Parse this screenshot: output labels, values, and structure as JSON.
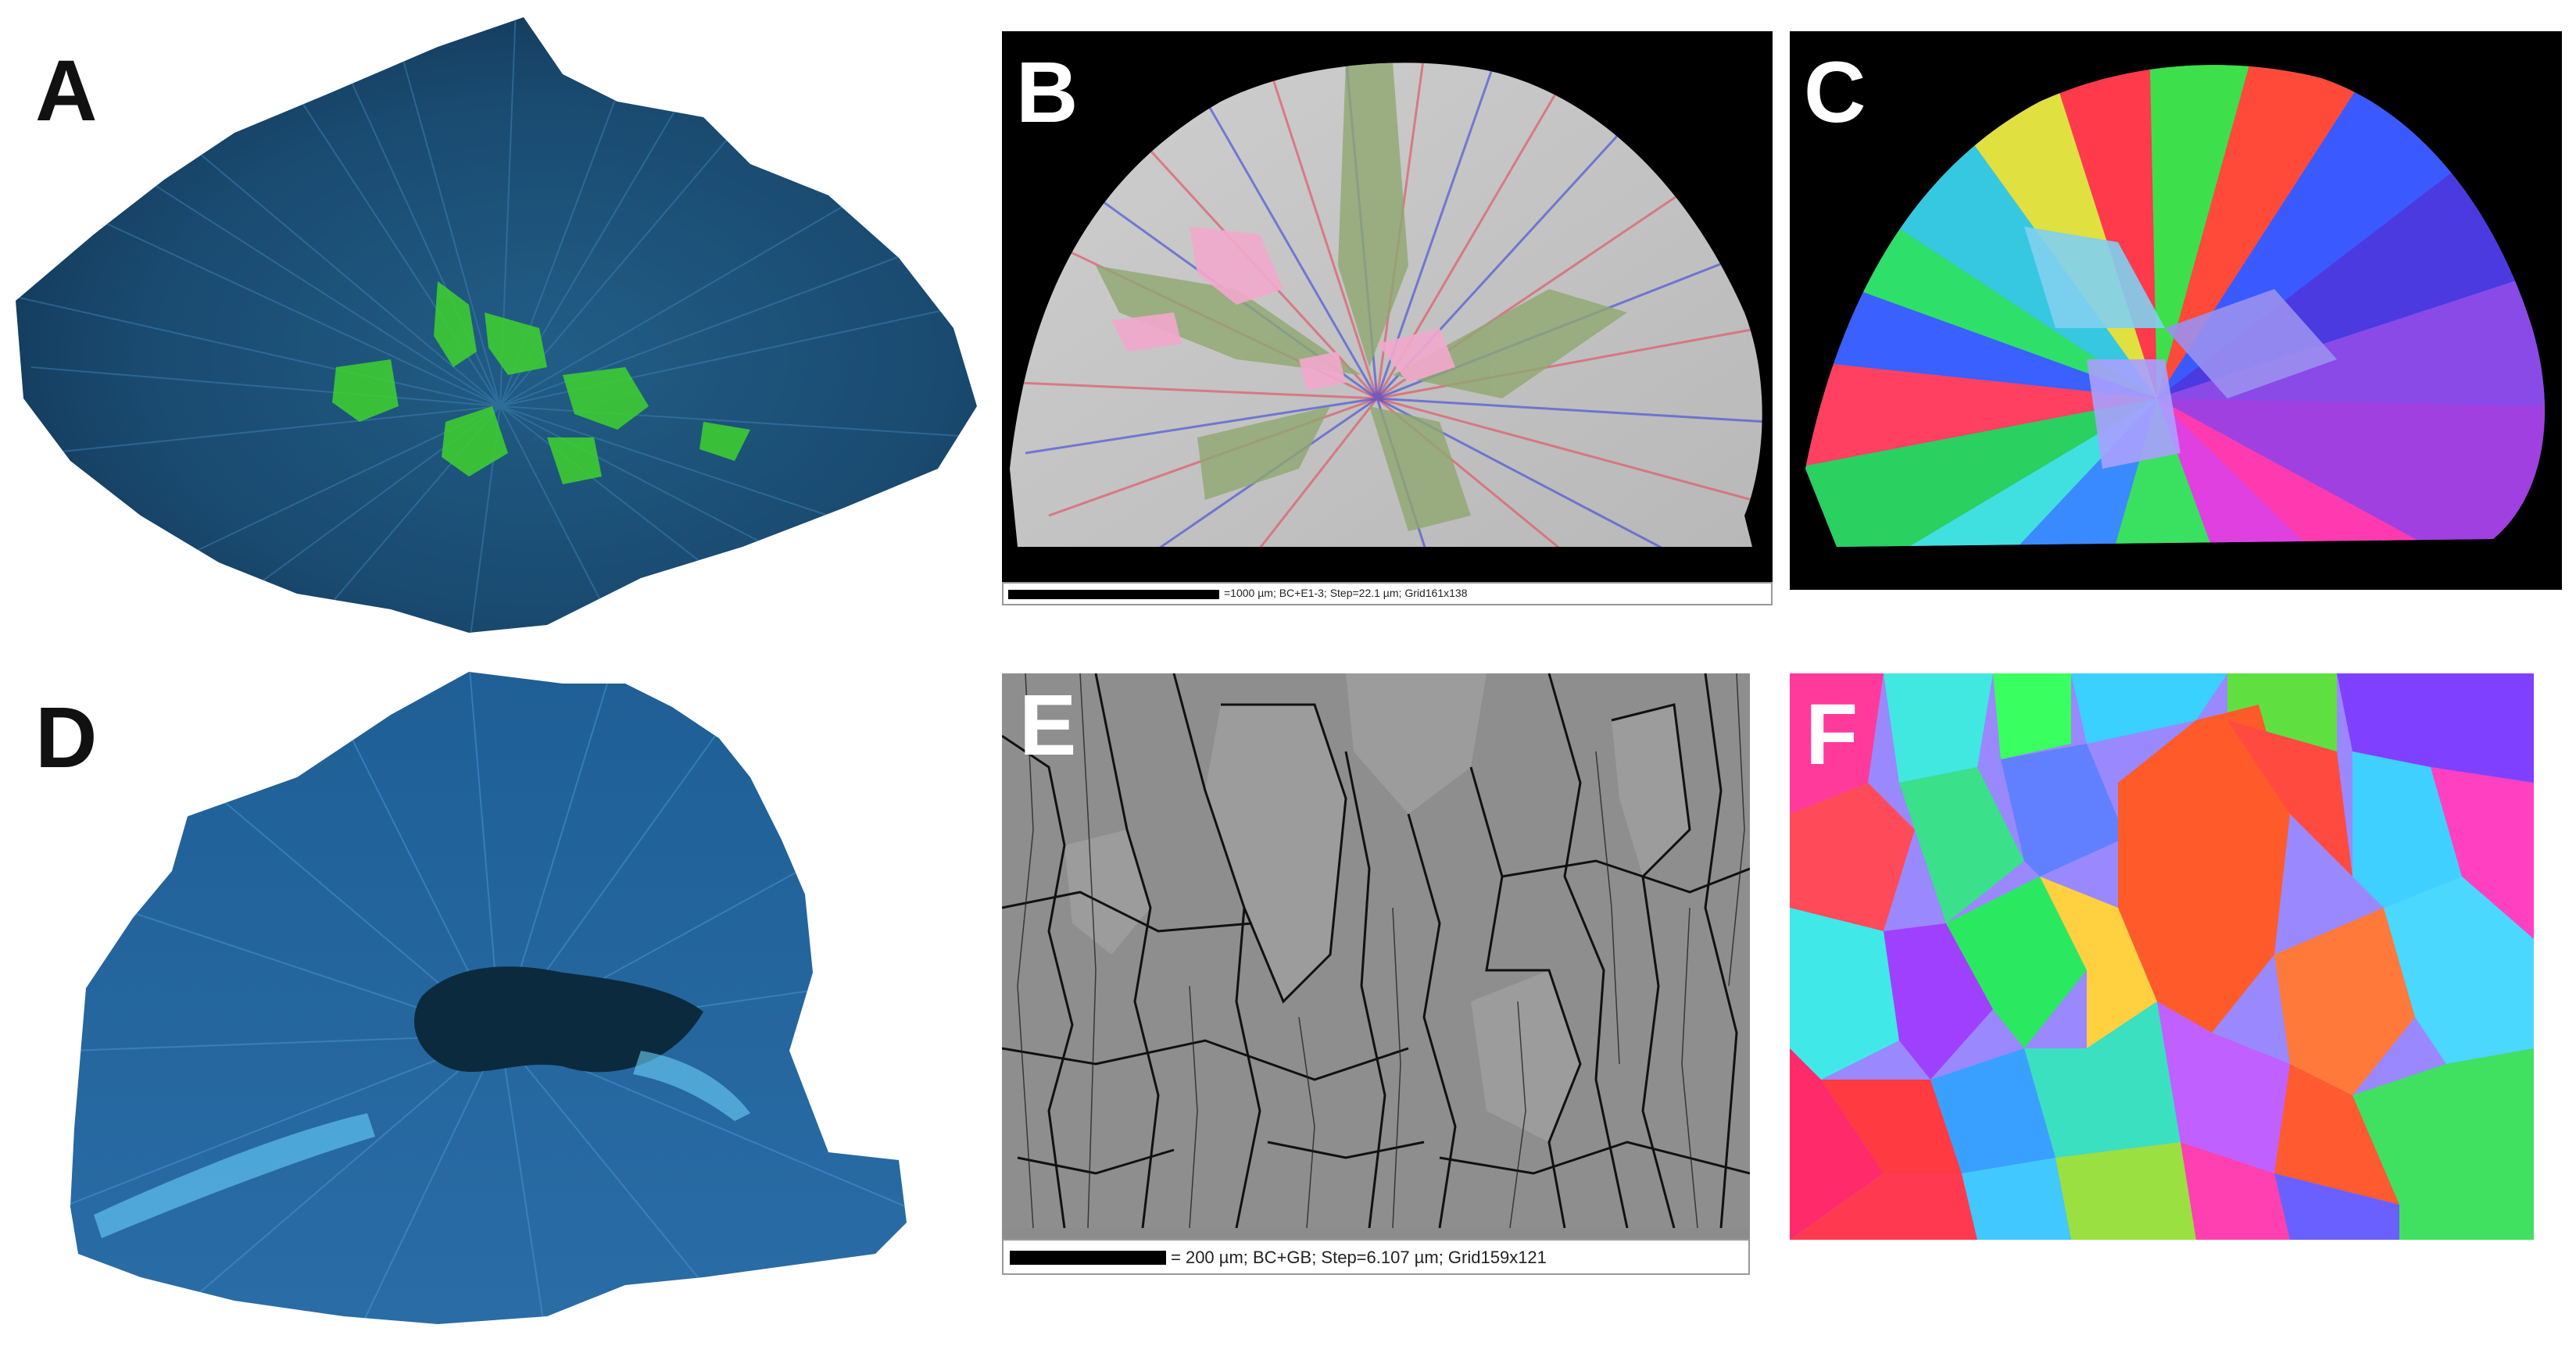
{
  "figure": {
    "panels": [
      {
        "id": "A",
        "label": "A",
        "label_color": "#111111"
      },
      {
        "id": "B",
        "label": "B",
        "label_color": "#ffffff",
        "scale_text": "=1000 µm; BC+E1-3; Step=22.1 µm; Grid161x138"
      },
      {
        "id": "C",
        "label": "C",
        "label_color": "#ffffff"
      },
      {
        "id": "D",
        "label": "D",
        "label_color": "#111111"
      },
      {
        "id": "E",
        "label": "E",
        "label_color": "#ffffff",
        "scale_text": "= 200 µm; BC+GB; Step=6.107 µm; Grid159x121"
      },
      {
        "id": "F",
        "label": "F",
        "label_color": "#ffffff"
      }
    ],
    "colors": {
      "fluorescence_blue": "#1f5f8f",
      "fluorescence_green": "#3ad02a",
      "ebsd_background": "#000000",
      "grain_boundary": "#111111"
    }
  }
}
